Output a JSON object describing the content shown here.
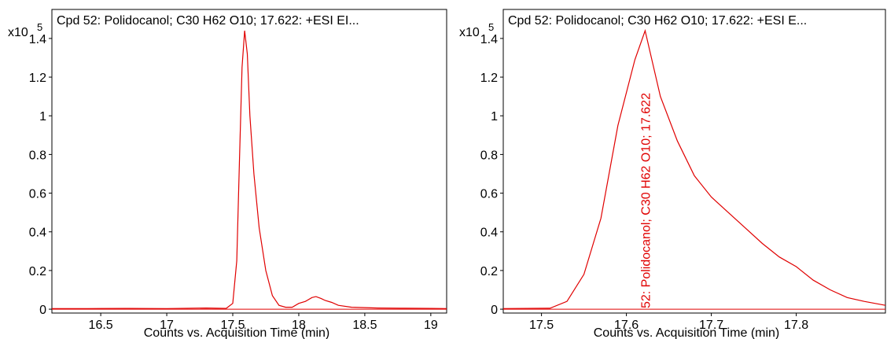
{
  "chart_data": [
    {
      "type": "line",
      "title": "Cpd 52: Polidocanol; C30 H62 O10; 17.622: +ESI EI...",
      "xlabel": "Counts vs. Acquisition Time (min)",
      "ylabel": "",
      "y_multiplier": "x10",
      "y_exponent": "5",
      "xlim": [
        16.13,
        19.12
      ],
      "ylim": [
        -0.02,
        1.55
      ],
      "grid": false,
      "x_ticks": [
        16.5,
        17,
        17.5,
        18,
        18.5,
        19
      ],
      "x_tick_labels": [
        "16.5",
        "17",
        "17.5",
        "18",
        "18.5",
        "19"
      ],
      "y_ticks": [
        0,
        0.2,
        0.4,
        0.6,
        0.8,
        1,
        1.2,
        1.4
      ],
      "y_tick_labels": [
        "0",
        "0.2",
        "0.4",
        "0.6",
        "0.8",
        "1",
        "1.2",
        "1.4"
      ],
      "color": "#e00000",
      "series": [
        {
          "x": [
            16.13,
            16.4,
            16.7,
            17.0,
            17.3,
            17.45,
            17.5,
            17.53,
            17.55,
            17.57,
            17.59,
            17.61,
            17.63,
            17.66,
            17.7,
            17.75,
            17.8,
            17.85,
            17.9,
            17.95,
            18.0,
            18.05,
            18.1,
            18.13,
            18.17,
            18.2,
            18.25,
            18.3,
            18.4,
            18.5,
            18.6,
            18.8,
            19.0,
            19.12
          ],
          "y": [
            0.003,
            0.003,
            0.004,
            0.003,
            0.006,
            0.004,
            0.03,
            0.25,
            0.75,
            1.25,
            1.44,
            1.32,
            1.0,
            0.7,
            0.42,
            0.2,
            0.07,
            0.02,
            0.01,
            0.01,
            0.03,
            0.04,
            0.06,
            0.065,
            0.055,
            0.045,
            0.035,
            0.02,
            0.01,
            0.008,
            0.006,
            0.005,
            0.004,
            0.003
          ]
        }
      ]
    },
    {
      "type": "line",
      "title": "Cpd 52: Polidocanol; C30 H62 O10; 17.622: +ESI E...",
      "xlabel": "Counts vs. Acquisition Time (min)",
      "ylabel": "",
      "y_multiplier": "x10",
      "y_exponent": "5",
      "xlim": [
        17.455,
        17.905
      ],
      "ylim": [
        -0.02,
        1.55
      ],
      "grid": false,
      "x_ticks": [
        17.5,
        17.6,
        17.7,
        17.8
      ],
      "x_tick_labels": [
        "17.5",
        "17.6",
        "17.7",
        "17.8"
      ],
      "y_ticks": [
        0,
        0.2,
        0.4,
        0.6,
        0.8,
        1,
        1.2,
        1.4
      ],
      "y_tick_labels": [
        "0",
        "0.2",
        "0.4",
        "0.6",
        "0.8",
        "1",
        "1.2",
        "1.4"
      ],
      "color": "#e00000",
      "annotations": [
        {
          "x": 17.622,
          "text": "52: Polidocanol; C30 H62 O10; 17.622"
        }
      ],
      "series": [
        {
          "x": [
            17.455,
            17.51,
            17.53,
            17.55,
            17.57,
            17.59,
            17.61,
            17.622,
            17.64,
            17.66,
            17.68,
            17.7,
            17.72,
            17.74,
            17.76,
            17.78,
            17.8,
            17.82,
            17.84,
            17.86,
            17.88,
            17.905
          ],
          "y": [
            0.003,
            0.005,
            0.04,
            0.18,
            0.47,
            0.95,
            1.29,
            1.44,
            1.1,
            0.87,
            0.69,
            0.58,
            0.5,
            0.42,
            0.34,
            0.27,
            0.22,
            0.15,
            0.1,
            0.06,
            0.04,
            0.02
          ]
        }
      ]
    }
  ]
}
